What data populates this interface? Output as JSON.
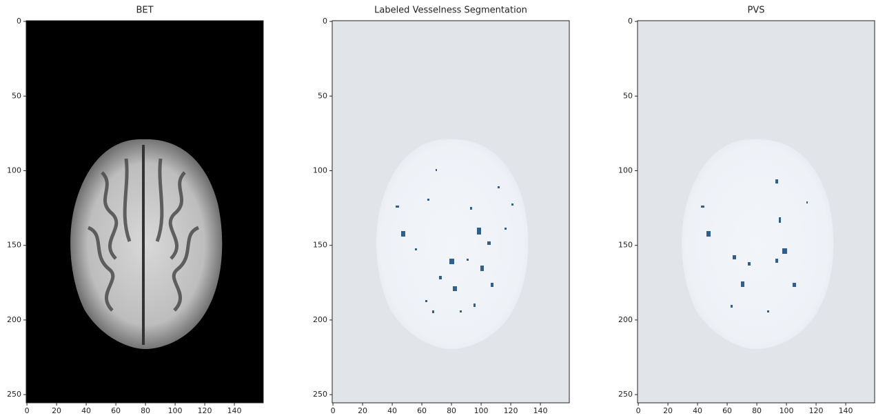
{
  "chart_data": [
    {
      "type": "image",
      "title": "BET",
      "background": "#000000",
      "xlim": [
        -0.5,
        159.5
      ],
      "ylim": [
        255.5,
        -0.5
      ],
      "xticks": [
        0,
        20,
        40,
        60,
        80,
        100,
        120,
        140
      ],
      "yticks": [
        0,
        50,
        100,
        150,
        200,
        250
      ]
    },
    {
      "type": "image",
      "title": "Labeled Vesselness Segmentation",
      "background": "#e1e4e8",
      "xlim": [
        -0.5,
        159.5
      ],
      "ylim": [
        255.5,
        -0.5
      ],
      "xticks": [
        0,
        20,
        40,
        60,
        80,
        100,
        120,
        140
      ],
      "yticks": [
        0,
        50,
        100,
        150,
        200,
        250
      ]
    },
    {
      "type": "image",
      "title": "PVS",
      "background": "#e1e4e8",
      "xlim": [
        -0.5,
        159.5
      ],
      "ylim": [
        255.5,
        -0.5
      ],
      "xticks": [
        0,
        20,
        40,
        60,
        80,
        100,
        120,
        140
      ],
      "yticks": [
        0,
        50,
        100,
        150,
        200,
        250
      ]
    }
  ]
}
